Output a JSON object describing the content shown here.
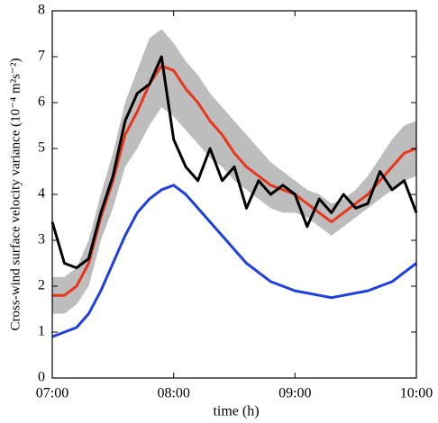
{
  "chart_data": {
    "type": "line",
    "xlabel": "time (h)",
    "ylabel": "Cross-wind surface velocity variance (10⁻⁴ m²s⁻²)",
    "x": [
      7.0,
      7.1,
      7.2,
      7.3,
      7.4,
      7.5,
      7.6,
      7.7,
      7.8,
      7.9,
      8.0,
      8.1,
      8.2,
      8.3,
      8.4,
      8.5,
      8.6,
      8.7,
      8.8,
      8.9,
      9.0,
      9.1,
      9.2,
      9.3,
      9.4,
      9.5,
      9.6,
      9.7,
      9.8,
      9.9,
      10.0
    ],
    "xlim": [
      7,
      10
    ],
    "xticks": [
      {
        "value": 7,
        "label": "07:00"
      },
      {
        "value": 8,
        "label": "08:00"
      },
      {
        "value": 9,
        "label": "09:00"
      },
      {
        "value": 10,
        "label": "10:00"
      }
    ],
    "ylim": [
      0,
      8
    ],
    "yticks": [
      0,
      1,
      2,
      3,
      4,
      5,
      6,
      7,
      8
    ],
    "band": {
      "color": "#bdbdbd",
      "upper": [
        2.2,
        2.2,
        2.4,
        3.0,
        4.0,
        4.9,
        6.0,
        6.7,
        7.4,
        7.6,
        7.3,
        6.9,
        6.6,
        6.2,
        5.9,
        5.6,
        5.3,
        5.0,
        4.7,
        4.5,
        4.3,
        4.1,
        4.0,
        3.8,
        3.9,
        4.1,
        4.4,
        4.8,
        5.2,
        5.5,
        5.6
      ],
      "lower": [
        1.4,
        1.4,
        1.6,
        2.0,
        3.0,
        3.7,
        4.6,
        5.0,
        5.5,
        5.9,
        5.7,
        5.4,
        5.1,
        4.8,
        4.6,
        4.3,
        4.1,
        3.9,
        3.7,
        3.6,
        3.6,
        3.5,
        3.3,
        3.1,
        3.3,
        3.5,
        3.7,
        3.9,
        4.1,
        4.3,
        4.4
      ]
    },
    "series": [
      {
        "color": "#e8361c",
        "values": [
          1.8,
          1.8,
          2.0,
          2.5,
          3.5,
          4.3,
          5.3,
          5.8,
          6.4,
          6.8,
          6.7,
          6.3,
          6.0,
          5.6,
          5.3,
          4.9,
          4.6,
          4.4,
          4.2,
          4.1,
          4.0,
          3.8,
          3.6,
          3.4,
          3.6,
          3.8,
          4.0,
          4.3,
          4.6,
          4.9,
          5.0
        ]
      },
      {
        "color": "#000000",
        "values": [
          3.4,
          2.5,
          2.4,
          2.6,
          3.6,
          4.4,
          5.6,
          6.2,
          6.4,
          7.0,
          5.2,
          4.6,
          4.3,
          5.0,
          4.3,
          4.6,
          3.7,
          4.3,
          4.0,
          4.2,
          4.0,
          3.3,
          3.9,
          3.6,
          4.0,
          3.7,
          3.8,
          4.5,
          4.1,
          4.3,
          3.6
        ]
      },
      {
        "color": "#1f3fe0",
        "values": [
          0.9,
          1.0,
          1.1,
          1.4,
          1.9,
          2.5,
          3.1,
          3.6,
          3.9,
          4.1,
          4.2,
          4.0,
          3.7,
          3.4,
          3.1,
          2.8,
          2.5,
          2.3,
          2.1,
          2.0,
          1.9,
          1.85,
          1.8,
          1.75,
          1.8,
          1.85,
          1.9,
          2.0,
          2.1,
          2.3,
          2.5
        ]
      }
    ]
  }
}
